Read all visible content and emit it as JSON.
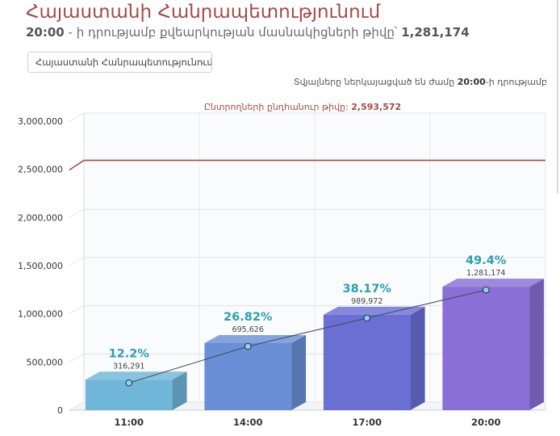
{
  "header": {
    "title": "Հայաստանի Հանրապետությունում",
    "subtitle_time": "20:00",
    "subtitle_text": " - ի դրությամբ քվեարկության մասնակիցների թիվը՝ ",
    "subtitle_count": "1,281,174"
  },
  "region_select": {
    "value": "Հայաստանի Հանրապետությունում"
  },
  "note": {
    "prefix": "Տվյալները ներկայացված են ժամը ",
    "time": "20:00",
    "suffix": "-ի դրությամբ"
  },
  "chart_data": {
    "type": "bar",
    "categories": [
      "11:00",
      "14:00",
      "17:00",
      "20:00"
    ],
    "values": [
      316291,
      695626,
      989972,
      1281174
    ],
    "value_labels": [
      "316,291",
      "695,626",
      "989,972",
      "1,281,174"
    ],
    "percent_labels": [
      "12.2%",
      "26.82%",
      "38.17%",
      "49.4%"
    ],
    "ylim": [
      0,
      3000000
    ],
    "yticks": [
      0,
      500000,
      1000000,
      1500000,
      2000000,
      2500000,
      3000000
    ],
    "ytick_labels": [
      "0",
      "500,000",
      "1,000,000",
      "1,500,000",
      "2,000,000",
      "2,500,000",
      "3,000,000"
    ],
    "reference_line": {
      "value": 2593572,
      "label_prefix": "Ընտրողների ընդհանուր թիվը: ",
      "label_value": "2,593,572",
      "color": "#a64a46"
    },
    "bar_colors": [
      "#6fb6d9",
      "#6a8fd6",
      "#6a6fd4",
      "#8a6fd6"
    ],
    "percent_color": "#2aa0b0",
    "trend_line": true,
    "grid": true
  }
}
